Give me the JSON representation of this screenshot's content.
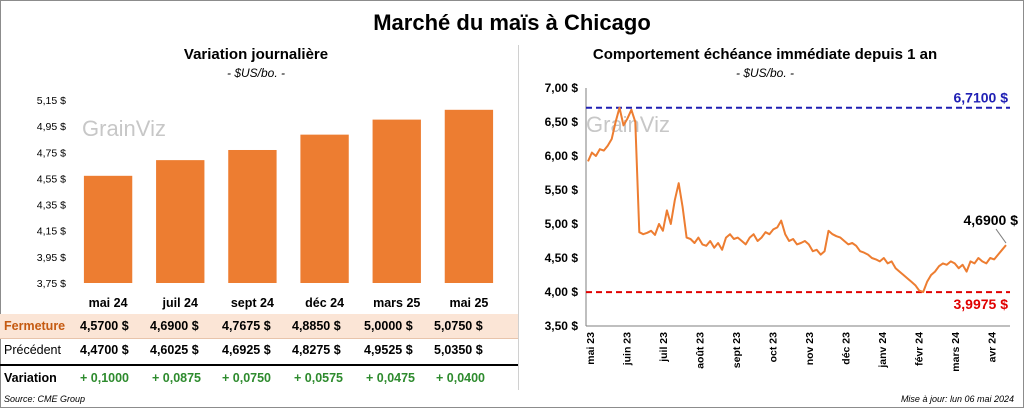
{
  "title": "Marché du maïs à Chicago",
  "left": {
    "title": "Variation  journalière",
    "subtitle": "- $US/bo. -"
  },
  "right": {
    "title": "Comportement  échéance  immédiate  depuis  1  an",
    "subtitle": "- $US/bo. -"
  },
  "watermark": "GrainViz",
  "table": {
    "rows": [
      {
        "label": "Fermeture",
        "values": [
          "4,5700  $",
          "4,6900  $",
          "4,7675  $",
          "4,8850  $",
          "5,0000  $",
          "5,0750  $"
        ]
      },
      {
        "label": "Précédent",
        "values": [
          "4,4700  $",
          "4,6025  $",
          "4,6925  $",
          "4,8275  $",
          "4,9525  $",
          "5,0350  $"
        ]
      },
      {
        "label": "Variation",
        "values": [
          "+ 0,1000",
          "+ 0,0875",
          "+ 0,0750",
          "+ 0,0575",
          "+ 0,0475",
          "+ 0,0400"
        ]
      }
    ]
  },
  "footer": {
    "source": "Source: CME Group",
    "updated": "Mise à jour: lun 06 mai 2024"
  },
  "colors": {
    "bar": "#ed7d31",
    "line": "#ed7d31",
    "high": "#1f1fb4",
    "low": "#e00000",
    "gain": "#2e8b2e"
  },
  "chart_data": [
    {
      "type": "bar",
      "title": "Variation  journalière",
      "subtitle": "- $US/bo. -",
      "categories": [
        "mai 24",
        "juil 24",
        "sept 24",
        "déc 24",
        "mars 25",
        "mai 25"
      ],
      "values": [
        4.57,
        4.69,
        4.7675,
        4.885,
        5.0,
        5.075
      ],
      "ylim": [
        3.75,
        5.15
      ],
      "yticks": [
        "5,15 $",
        "4,95 $",
        "4,75 $",
        "4,55 $",
        "4,35 $",
        "4,15 $",
        "3,95 $",
        "3,75 $"
      ],
      "grid": false
    },
    {
      "type": "line",
      "title": "Comportement  échéance  immédiate  depuis  1  an",
      "subtitle": "- $US/bo. -",
      "xticks": [
        "mai 23",
        "juin 23",
        "juil 23",
        "août 23",
        "sept 23",
        "oct 23",
        "nov 23",
        "déc 23",
        "janv 24",
        "févr 24",
        "mars 24",
        "avr 24"
      ],
      "ylim": [
        3.5,
        7.0
      ],
      "yticks": [
        "7,00 $",
        "6,50 $",
        "6,00 $",
        "5,50 $",
        "5,00 $",
        "4,50 $",
        "4,00 $",
        "3,50 $"
      ],
      "high": {
        "value": 6.71,
        "label": "6,7100 $"
      },
      "low": {
        "value": 3.9975,
        "label": "3,9975 $"
      },
      "last": {
        "value": 4.69,
        "label": "4,6900 $"
      },
      "series": [
        {
          "values": [
            5.92,
            6.05,
            6.0,
            6.1,
            6.08,
            6.15,
            6.25,
            6.5,
            6.71,
            6.45,
            6.55,
            6.68,
            6.5,
            4.88,
            4.85,
            4.87,
            4.9,
            4.84,
            5.0,
            4.9,
            5.2,
            5.0,
            5.35,
            5.6,
            5.25,
            4.8,
            4.78,
            4.72,
            4.8,
            4.7,
            4.68,
            4.75,
            4.65,
            4.72,
            4.62,
            4.8,
            4.85,
            4.78,
            4.8,
            4.75,
            4.7,
            4.8,
            4.85,
            4.75,
            4.8,
            4.88,
            4.85,
            4.92,
            4.95,
            5.05,
            4.85,
            4.75,
            4.78,
            4.7,
            4.72,
            4.75,
            4.7,
            4.6,
            4.62,
            4.55,
            4.6,
            4.9,
            4.85,
            4.82,
            4.8,
            4.75,
            4.7,
            4.72,
            4.68,
            4.6,
            4.58,
            4.55,
            4.5,
            4.48,
            4.45,
            4.5,
            4.42,
            4.45,
            4.35,
            4.3,
            4.25,
            4.2,
            4.15,
            4.1,
            4.02,
            4.0,
            4.15,
            4.25,
            4.3,
            4.38,
            4.42,
            4.4,
            4.45,
            4.42,
            4.35,
            4.4,
            4.3,
            4.45,
            4.42,
            4.5,
            4.45,
            4.42,
            4.5,
            4.48,
            4.55,
            4.62,
            4.69
          ]
        }
      ]
    }
  ]
}
